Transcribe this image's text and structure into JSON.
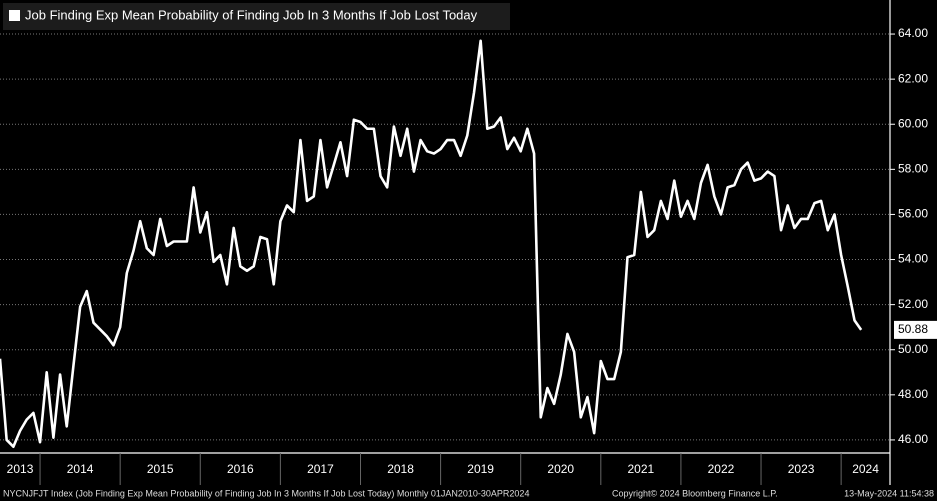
{
  "chart_data": {
    "type": "line",
    "series": [
      {
        "name": "Job Finding Exp Mean Probability of Finding Job In 3 Months If Job Lost Today",
        "color": "#ffffff",
        "values": [
          49.6,
          46.0,
          45.7,
          46.4,
          46.9,
          47.2,
          45.9,
          49.0,
          46.1,
          48.9,
          46.6,
          49.3,
          51.9,
          52.6,
          51.2,
          50.9,
          50.6,
          50.2,
          51.0,
          53.4,
          54.4,
          55.7,
          54.5,
          54.2,
          55.8,
          54.6,
          54.8,
          54.8,
          54.8,
          57.2,
          55.2,
          56.1,
          53.9,
          54.2,
          52.9,
          55.4,
          53.7,
          53.5,
          53.7,
          55.0,
          54.9,
          52.9,
          55.7,
          56.4,
          56.1,
          59.3,
          56.6,
          56.8,
          59.3,
          57.2,
          58.2,
          59.2,
          57.7,
          60.2,
          60.1,
          59.8,
          59.8,
          57.7,
          57.2,
          59.9,
          58.6,
          59.8,
          57.9,
          59.3,
          58.8,
          58.7,
          58.9,
          59.3,
          59.3,
          58.6,
          59.5,
          61.4,
          63.7,
          59.8,
          59.9,
          60.3,
          58.9,
          59.4,
          58.8,
          59.8,
          58.7,
          47.0,
          48.3,
          47.6,
          48.9,
          50.7,
          49.9,
          47.0,
          47.9,
          46.3,
          49.5,
          48.7,
          48.7,
          49.9,
          54.1,
          54.2,
          57.0,
          55.0,
          55.3,
          56.6,
          55.8,
          57.5,
          55.9,
          56.6,
          55.8,
          57.4,
          58.2,
          56.8,
          56.0,
          57.2,
          57.3,
          58.0,
          58.3,
          57.5,
          57.6,
          57.9,
          57.7,
          55.3,
          56.4,
          55.4,
          55.8,
          55.8,
          56.5,
          56.6,
          55.3,
          56.0,
          54.2,
          52.8,
          51.3,
          50.88
        ],
        "value_labels": [
          null,
          null,
          null,
          null,
          null,
          null,
          null,
          null,
          null,
          null,
          null,
          null,
          null,
          null,
          null,
          null,
          null,
          null,
          null,
          null,
          null,
          null,
          null,
          null,
          null,
          null,
          null,
          null,
          null,
          null,
          null,
          null,
          null,
          null,
          null,
          null,
          null,
          null,
          null,
          null,
          null,
          null,
          null,
          null,
          null,
          null,
          null,
          null,
          null,
          null,
          null,
          null,
          null,
          null,
          null,
          null,
          null,
          null,
          null,
          null,
          null,
          null,
          null,
          null,
          null,
          null,
          null,
          null,
          null,
          null,
          null,
          null,
          null,
          null,
          null,
          null,
          null,
          null,
          null,
          null,
          null,
          null,
          null,
          null,
          null,
          null,
          null,
          null,
          null,
          null,
          null,
          null,
          null,
          null,
          null,
          null,
          null,
          null,
          null,
          null,
          null,
          null,
          null,
          null,
          null,
          null,
          null,
          null,
          null,
          null,
          null,
          null,
          null,
          null,
          null,
          null,
          null,
          null,
          null,
          null,
          null,
          null,
          null,
          null,
          null,
          null,
          null,
          null,
          null,
          "50.88"
        ]
      }
    ],
    "x": [
      2013.5,
      2013.583,
      2013.667,
      2013.75,
      2013.833,
      2013.917,
      2014,
      2014.083,
      2014.167,
      2014.25,
      2014.333,
      2014.417,
      2014.5,
      2014.583,
      2014.667,
      2014.75,
      2014.833,
      2014.917,
      2015,
      2015.083,
      2015.167,
      2015.25,
      2015.333,
      2015.417,
      2015.5,
      2015.583,
      2015.667,
      2015.75,
      2015.833,
      2015.917,
      2016,
      2016.083,
      2016.167,
      2016.25,
      2016.333,
      2016.417,
      2016.5,
      2016.583,
      2016.667,
      2016.75,
      2016.833,
      2016.917,
      2017,
      2017.083,
      2017.167,
      2017.25,
      2017.333,
      2017.417,
      2017.5,
      2017.583,
      2017.667,
      2017.75,
      2017.833,
      2017.917,
      2018,
      2018.083,
      2018.167,
      2018.25,
      2018.333,
      2018.417,
      2018.5,
      2018.583,
      2018.667,
      2018.75,
      2018.833,
      2018.917,
      2019,
      2019.083,
      2019.167,
      2019.25,
      2019.333,
      2019.417,
      2019.5,
      2019.583,
      2019.667,
      2019.75,
      2019.833,
      2019.917,
      2020,
      2020.083,
      2020.167,
      2020.25,
      2020.333,
      2020.417,
      2020.5,
      2020.583,
      2020.667,
      2020.75,
      2020.833,
      2020.917,
      2021,
      2021.083,
      2021.167,
      2021.25,
      2021.333,
      2021.417,
      2021.5,
      2021.583,
      2021.667,
      2021.75,
      2021.833,
      2021.917,
      2022,
      2022.083,
      2022.167,
      2022.25,
      2022.333,
      2022.417,
      2022.5,
      2022.583,
      2022.667,
      2022.75,
      2022.833,
      2022.917,
      2023,
      2023.083,
      2023.167,
      2023.25,
      2023.333,
      2023.417,
      2023.5,
      2023.583,
      2023.667,
      2023.75,
      2023.833,
      2023.917,
      2024,
      2024.083,
      2024.167,
      2024.25
    ],
    "xlim": [
      2013.5,
      2024.61
    ],
    "xticks": [
      2013,
      2014,
      2015,
      2016,
      2017,
      2018,
      2019,
      2020,
      2021,
      2022,
      2023,
      2024
    ],
    "ylim": [
      45.42,
      65.51
    ],
    "yticks": [
      {
        "value": 46,
        "label": "46.00"
      },
      {
        "value": 48,
        "label": "48.00"
      },
      {
        "value": 50,
        "label": "50.00"
      },
      {
        "value": 52,
        "label": "52.00"
      },
      {
        "value": 54,
        "label": "54.00"
      },
      {
        "value": 56,
        "label": "56.00"
      },
      {
        "value": 58,
        "label": "58.00"
      },
      {
        "value": 60,
        "label": "60.00"
      },
      {
        "value": 62,
        "label": "62.00"
      },
      {
        "value": 64,
        "label": "64.00"
      }
    ],
    "grid": true,
    "source": "NYCNJFJT Index (Job Finding Exp Mean Probability of Finding Job In 3 Months If Job Lost Today)  Monthly 01JAN2010-30APR2024",
    "copyright": "Copyright© 2024 Bloomberg Finance L.P.",
    "timestamp": "13-May-2024 11:54:38"
  }
}
